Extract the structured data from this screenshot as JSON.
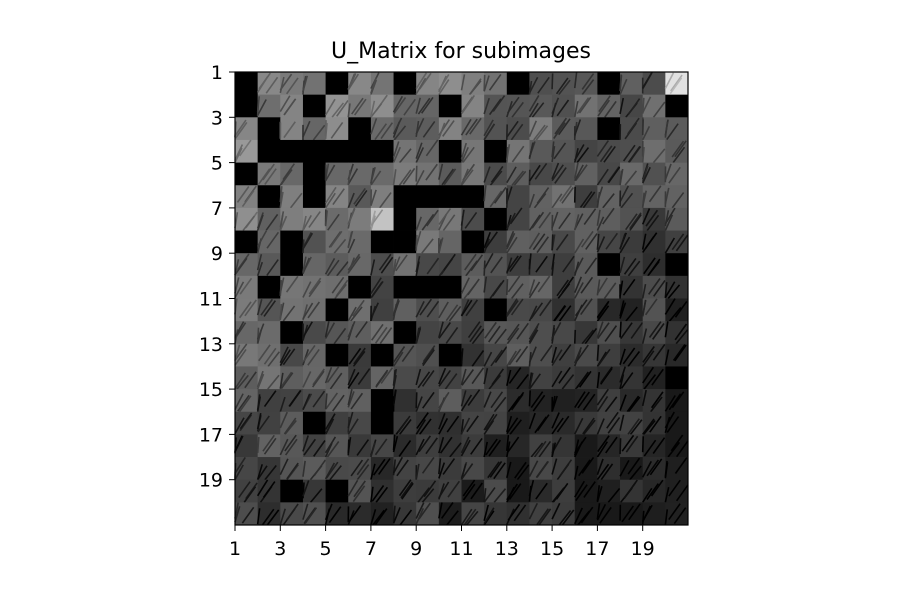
{
  "chart_data": {
    "type": "heatmap",
    "title": "U_Matrix for subimages",
    "xlabel": "",
    "ylabel": "",
    "colormap": "gray",
    "grid": false,
    "legend": "none",
    "xlim": [
      1,
      20
    ],
    "ylim": [
      20,
      1
    ],
    "xticks": [
      "1",
      "3",
      "5",
      "7",
      "9",
      "11",
      "13",
      "15",
      "17",
      "19"
    ],
    "yticks": [
      "1",
      "3",
      "5",
      "7",
      "9",
      "11",
      "13",
      "15",
      "17",
      "19"
    ],
    "rows": 20,
    "cols": 20,
    "cell_content": "grayscale subimage tiles",
    "black_cells": [
      [
        1,
        1
      ],
      [
        1,
        5
      ],
      [
        1,
        8
      ],
      [
        1,
        13
      ],
      [
        1,
        17
      ],
      [
        2,
        1
      ],
      [
        2,
        4
      ],
      [
        2,
        10
      ],
      [
        2,
        20
      ],
      [
        3,
        2
      ],
      [
        3,
        6
      ],
      [
        3,
        17
      ],
      [
        4,
        2
      ],
      [
        4,
        3
      ],
      [
        4,
        4
      ],
      [
        4,
        5
      ],
      [
        4,
        6
      ],
      [
        4,
        7
      ],
      [
        4,
        10
      ],
      [
        4,
        12
      ],
      [
        5,
        1
      ],
      [
        5,
        4
      ],
      [
        6,
        2
      ],
      [
        6,
        4
      ],
      [
        6,
        8
      ],
      [
        6,
        9
      ],
      [
        6,
        10
      ],
      [
        6,
        11
      ],
      [
        7,
        8
      ],
      [
        7,
        12
      ],
      [
        8,
        1
      ],
      [
        8,
        3
      ],
      [
        8,
        7
      ],
      [
        8,
        8
      ],
      [
        8,
        11
      ],
      [
        9,
        3
      ],
      [
        9,
        17
      ],
      [
        9,
        20
      ],
      [
        10,
        2
      ],
      [
        10,
        6
      ],
      [
        10,
        8
      ],
      [
        10,
        9
      ],
      [
        10,
        10
      ],
      [
        11,
        5
      ],
      [
        11,
        12
      ],
      [
        12,
        3
      ],
      [
        12,
        8
      ],
      [
        13,
        5
      ],
      [
        13,
        7
      ],
      [
        13,
        10
      ],
      [
        14,
        20
      ],
      [
        15,
        7
      ],
      [
        16,
        4
      ],
      [
        16,
        7
      ],
      [
        19,
        3
      ],
      [
        19,
        5
      ]
    ],
    "intensity_trend": "brighter toward top-left, darker toward bottom-right"
  }
}
